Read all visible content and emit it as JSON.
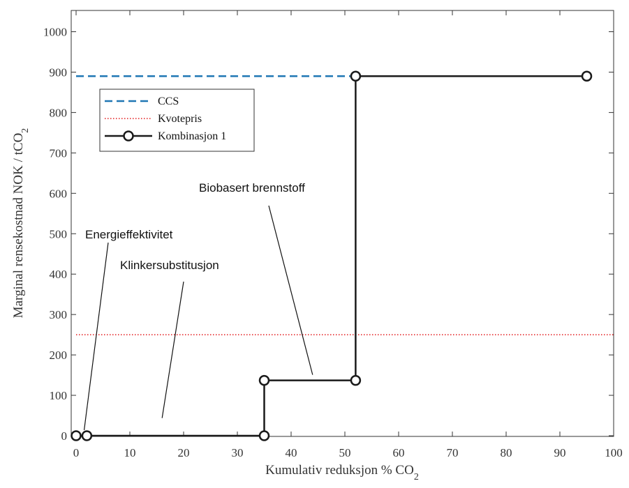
{
  "chart_data": {
    "type": "line",
    "xlabel": "Kumulativ reduksjon % CO",
    "xlabel_sub": "2",
    "ylabel": "Marginal rensekostnad NOK / tCO",
    "ylabel_sub": "2",
    "xlim": [
      0,
      100
    ],
    "ylim": [
      0,
      1050
    ],
    "x_ticks": [
      0,
      10,
      20,
      30,
      40,
      50,
      60,
      70,
      80,
      90,
      100
    ],
    "y_ticks": [
      0,
      100,
      200,
      300,
      400,
      500,
      600,
      700,
      800,
      900,
      1000
    ],
    "grid": false,
    "legend_position": "upper-left",
    "series": [
      {
        "name": "CCS",
        "style": "dashed",
        "color": "#1f77b4",
        "x": [
          0,
          52
        ],
        "y": [
          890,
          890
        ]
      },
      {
        "name": "Kvotepris",
        "style": "dotted",
        "color": "#e31a1c",
        "x": [
          0,
          100
        ],
        "y": [
          250,
          250
        ]
      },
      {
        "name": "Kombinasjon 1",
        "style": "solid-markers",
        "color": "#1a1a1a",
        "x": [
          0,
          2,
          35,
          35,
          52,
          52,
          95
        ],
        "y": [
          0,
          0,
          0,
          137,
          137,
          890,
          890
        ],
        "markers_x": [
          0,
          2,
          35,
          35,
          52,
          52,
          95
        ],
        "markers_y": [
          0,
          0,
          0,
          137,
          137,
          890,
          890
        ]
      }
    ],
    "annotations": [
      {
        "text": "Energieffektivitet",
        "pointer_to": [
          1.5,
          0
        ]
      },
      {
        "text": "Klinkersubstitusjon",
        "pointer_to": [
          16,
          30
        ]
      },
      {
        "text": "Biobasert brennstoff",
        "pointer_to": [
          44,
          137
        ]
      }
    ]
  }
}
